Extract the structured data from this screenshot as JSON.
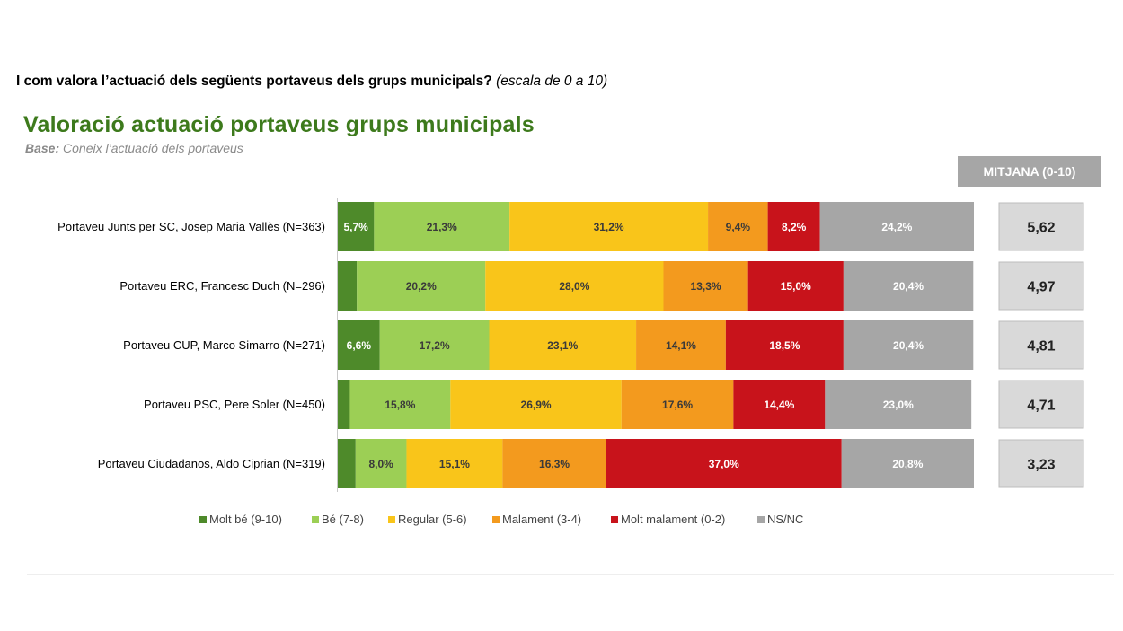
{
  "question": {
    "bold": "I com valora l’actuació dels següents portaveus dels grups  municipals?",
    "italic": "(escala de 0 a 10)"
  },
  "title": "Valoració actuació portaveus grups municipals",
  "base": {
    "label": "Base:",
    "text": "Coneix l’actuació dels portaveus"
  },
  "mean_header": "MITJANA (0-10)",
  "chart_data": {
    "type": "bar",
    "orientation": "horizontal",
    "stacked": true,
    "value_unit": "%",
    "xlim": [
      0,
      100
    ],
    "grid": false,
    "legend_position": "bottom",
    "categories": [
      "Portaveu Junts per SC, Josep Maria Vallès (N=363)",
      "Portaveu ERC, Francesc Duch (N=296)",
      "Portaveu CUP, Marco Simarro (N=271)",
      "Portaveu PSC, Pere Soler (N=450)",
      "Portaveu Ciudadanos, Aldo Ciprian (N=319)"
    ],
    "series": [
      {
        "name": "Molt bé (9-10)",
        "color": "#4e8a2a",
        "text_color": "#ffffff",
        "values": [
          5.7,
          3.0,
          6.6,
          1.9,
          2.8
        ],
        "labels": [
          "5,7%",
          "",
          "6,6%",
          "",
          ""
        ]
      },
      {
        "name": "Bé (7-8)",
        "color": "#9ccf55",
        "text_color": "#3a3a3a",
        "values": [
          21.3,
          20.2,
          17.2,
          15.8,
          8.0
        ],
        "labels": [
          "21,3%",
          "20,2%",
          "17,2%",
          "15,8%",
          "8,0%"
        ]
      },
      {
        "name": "Regular (5-6)",
        "color": "#f9c51a",
        "text_color": "#3a3a3a",
        "values": [
          31.2,
          28.0,
          23.1,
          26.9,
          15.1
        ],
        "labels": [
          "31,2%",
          "28,0%",
          "23,1%",
          "26,9%",
          "15,1%"
        ]
      },
      {
        "name": "Malament (3-4)",
        "color": "#f39a1e",
        "text_color": "#3a3a3a",
        "values": [
          9.4,
          13.3,
          14.1,
          17.6,
          16.3
        ],
        "labels": [
          "9,4%",
          "13,3%",
          "14,1%",
          "17,6%",
          "16,3%"
        ]
      },
      {
        "name": "Molt malament (0-2)",
        "color": "#c8131b",
        "text_color": "#ffffff",
        "values": [
          8.2,
          15.0,
          18.5,
          14.4,
          37.0
        ],
        "labels": [
          "8,2%",
          "15,0%",
          "18,5%",
          "14,4%",
          "37,0%"
        ]
      },
      {
        "name": "NS/NC",
        "color": "#a6a6a6",
        "text_color": "#ffffff",
        "values": [
          24.2,
          20.4,
          20.4,
          23.0,
          20.8
        ],
        "labels": [
          "24,2%",
          "20,4%",
          "20,4%",
          "23,0%",
          "20,8%"
        ]
      }
    ],
    "means": [
      "5,62",
      "4,97",
      "4,81",
      "4,71",
      "3,23"
    ]
  }
}
